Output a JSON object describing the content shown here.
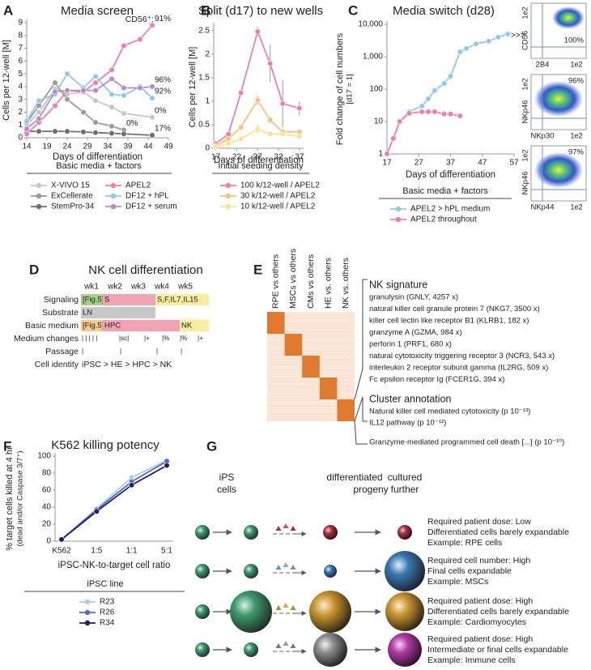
{
  "panel_labels": [
    "A",
    "B",
    "C",
    "D",
    "E",
    "F",
    "G"
  ],
  "chart_data": [
    {
      "type": "line",
      "title": "Media screen",
      "x_label": "Days of differentiation",
      "y_label": "Cells per 12-well [M]",
      "annotation": "CD56⁺:",
      "legend_title": "Basic media + factors",
      "xlim": [
        14,
        49
      ],
      "xticks": [
        14,
        19,
        24,
        29,
        34,
        39,
        44,
        49
      ],
      "ylim": [
        0,
        9
      ],
      "yticks": [
        0,
        1,
        2,
        3,
        4,
        5,
        6,
        7,
        8,
        9
      ],
      "series": [
        {
          "name": "X-VIVO 15",
          "color": "#c6c6c6",
          "end_label": "0%",
          "x": [
            14,
            17,
            21,
            24,
            28,
            31,
            35,
            38,
            45
          ],
          "values": [
            1.0,
            2.0,
            3.8,
            3.4,
            3.6,
            2.9,
            2.4,
            1.9,
            1.6
          ]
        },
        {
          "name": "ExCellerate",
          "color": "#9a9a9a",
          "end_label": "0%",
          "x": [
            14,
            17,
            21,
            24,
            28,
            31,
            35,
            38
          ],
          "values": [
            1.2,
            2.5,
            4.3,
            3.0,
            2.0,
            1.2,
            0.9,
            0.6
          ]
        },
        {
          "name": "StemPro-34",
          "color": "#6e6e6e",
          "end_label": "17%",
          "x": [
            14,
            17,
            21,
            24,
            28,
            31,
            35,
            38,
            45
          ],
          "values": [
            0.5,
            0.5,
            0.5,
            0.5,
            0.45,
            0.4,
            0.35,
            0.3,
            0.2
          ]
        },
        {
          "name": "APEL2",
          "color": "#ec7fae",
          "end_label": "91%",
          "x": [
            14,
            17,
            21,
            24,
            28,
            31,
            35,
            38,
            42,
            45
          ],
          "values": [
            0.3,
            1.2,
            2.5,
            3.7,
            3.6,
            4.3,
            5.3,
            7.2,
            7.7,
            8.8
          ]
        },
        {
          "name": "DF12 + hPL",
          "color": "#8fc8ee",
          "end_label": "92%",
          "x": [
            14,
            17,
            21,
            24,
            28,
            31,
            35,
            38,
            42,
            45
          ],
          "values": [
            1.3,
            2.9,
            3.4,
            5.0,
            3.9,
            4.8,
            3.4,
            3.3,
            4.0,
            3.1
          ]
        },
        {
          "name": "DF12 + serum",
          "color": "#b38ad0",
          "end_label": "96%",
          "x": [
            14,
            17,
            21,
            24,
            28,
            31,
            35,
            38,
            42,
            45
          ],
          "values": [
            0.7,
            1.5,
            3.6,
            3.7,
            3.7,
            3.7,
            4.6,
            3.9,
            3.9,
            4.0
          ]
        }
      ]
    },
    {
      "type": "line",
      "title": "Split (d17) to new wells",
      "x_label": "Days of differentiation",
      "y_label": "Cells per 12-well [M]",
      "legend_title": "Initial seeding density",
      "xlim": [
        16.5,
        38
      ],
      "xticks": [
        17,
        22,
        27,
        32,
        37
      ],
      "ylim": [
        0,
        2.6
      ],
      "yticks": [
        0,
        0.5,
        1,
        1.5,
        2,
        2.5
      ],
      "series": [
        {
          "name": "100 k/12-well / APEL2",
          "color": "#ec7fae",
          "x": [
            17,
            20,
            23,
            27,
            30,
            33,
            37
          ],
          "values": [
            0.1,
            0.3,
            1.18,
            2.48,
            1.8,
            0.95,
            0.85
          ],
          "errors": [
            0.02,
            0.03,
            0.05,
            0.1,
            0.4,
            0.5,
            0.15
          ]
        },
        {
          "name": "30 k/12-well / APEL2",
          "color": "#f6c27c",
          "x": [
            17,
            20,
            23,
            27,
            30,
            33,
            37
          ],
          "values": [
            0.05,
            0.2,
            0.45,
            1.02,
            0.6,
            0.35,
            0.35
          ],
          "errors": [
            0.01,
            0.02,
            0.03,
            0.1,
            0.08,
            0.05,
            0.05
          ]
        },
        {
          "name": "10 k/12-well / APEL2",
          "color": "#f7e48c",
          "x": [
            17,
            20,
            23,
            27,
            30,
            33,
            37
          ],
          "values": [
            0.02,
            0.1,
            0.2,
            0.4,
            0.3,
            0.3,
            0.25
          ],
          "errors": [
            0.01,
            0.01,
            0.02,
            0.08,
            0.05,
            0.05,
            0.04
          ]
        }
      ]
    },
    {
      "type": "line",
      "title": "Media switch (d28)",
      "x_label": "Days of differentiation",
      "y_label": "Fold change of cell numbers",
      "y_sublabel": "[d17 = 1]",
      "legend_title": "Basic media + factors",
      "log_y": true,
      "xlim": [
        17,
        57
      ],
      "xticks": [
        17,
        27,
        37,
        47,
        57
      ],
      "ylim": [
        1,
        10000
      ],
      "yticks": [
        1,
        10,
        100,
        {
          "value": 1000,
          "label": "1,000"
        },
        {
          "value": 10000,
          "label": "10,000"
        }
      ],
      "series": [
        {
          "name": "APEL2 > hPL medium",
          "color": "#8fc8ee",
          "x": [
            17,
            19,
            21,
            24,
            28,
            30,
            32,
            35,
            37,
            40,
            42,
            45,
            49,
            52,
            55
          ],
          "values": [
            1,
            3,
            10,
            20,
            30,
            50,
            90,
            150,
            250,
            1400,
            1800,
            2500,
            3000,
            4000,
            5000
          ]
        },
        {
          "name": "APEL2 throughout",
          "color": "#ec7fae",
          "x": [
            17,
            19,
            21,
            24,
            28,
            30,
            32,
            35,
            37,
            40
          ],
          "values": [
            1,
            3,
            10,
            18,
            20,
            20,
            20,
            17,
            17,
            15
          ]
        }
      ]
    },
    {
      "type": "line",
      "title": "K562 killing potency",
      "x_label": "iPSC-NK-to-target cell ratio",
      "y_label": "% target cells killed at 4 hr",
      "y_sublabel": "(dead and/or Caspase 3/7⁺)",
      "legend_title": "iPSC line",
      "categories": [
        "K562",
        "1:5",
        "1:1",
        "5:1"
      ],
      "ylim": [
        0,
        100
      ],
      "yticks": [
        0,
        20,
        40,
        60,
        80,
        100
      ],
      "series": [
        {
          "name": "R23",
          "color": "#a9cdef",
          "values": [
            2,
            38,
            75,
            95
          ]
        },
        {
          "name": "R26",
          "color": "#4a6fc0",
          "values": [
            2,
            37,
            70,
            94
          ]
        },
        {
          "name": "R34",
          "color": "#221c6e",
          "values": [
            2,
            35,
            66,
            89
          ]
        }
      ]
    }
  ],
  "flow_arrow": ">>>",
  "flow_plots": [
    {
      "y_label": "CD56",
      "x_label": "2B4",
      "percent": "100%",
      "y_tick": "1e2",
      "x_tick": "1e2"
    },
    {
      "y_label": "NKp46",
      "x_label": "NKp30",
      "percent": "96%",
      "y_tick": "1e2",
      "x_tick": "1e2"
    },
    {
      "y_label": "NKp46",
      "x_label": "NKp44",
      "percent": "97%",
      "y_tick": "1e2",
      "x_tick": "1e2"
    }
  ],
  "nk_differentiation": {
    "title": "NK cell differentiation",
    "weeks": [
      "wk1",
      "wk2",
      "wk3",
      "wk4",
      "wk5"
    ],
    "row_labels": [
      "Signaling",
      "Substrate",
      "Basic medium",
      "Medium changes",
      "Passage",
      "Cell identity"
    ],
    "signaling": [
      "[Fig.5]",
      "S",
      "S,F,IL7,IL15"
    ],
    "substrate": [
      "LN"
    ],
    "basic_medium": [
      "[Fig.5]",
      "HPC",
      "NK"
    ],
    "medium_changes": [
      "| | | | |",
      "|sc|",
      "|+",
      "|%",
      "|%",
      "|+"
    ],
    "passage": [
      "|",
      "|",
      "|",
      "|"
    ],
    "cell_identity": "iPSC > HE > HPC > NK"
  },
  "signature_heatmap": {
    "columns": [
      "RPE vs others",
      "MSCs vs others",
      "CMs vs others",
      "HE vs. others",
      "NK vs. others"
    ],
    "signature_title": "NK signature",
    "signature": [
      "granulysin (GNLY, 4257 x)",
      "natural killer cell granule protein 7 (NKG7, 3500 x)",
      "killer cell lectin like receptor B1 (KLRB1, 182 x)",
      "granzyme A (GZMA, 984 x)",
      "perforin 1 (PRF1, 680 x)",
      "natural cytotoxicity triggering receptor 3 (NCR3, 543 x)",
      "interleukin 2 receptor subunit gamma (IL2RG, 509 x)",
      "Fc epsilon receptor Ig (FCER1G, 394 x)"
    ],
    "annotation_title": "Cluster annotation",
    "annotations": [
      "Natural killer cell mediated cytotoxicity (p 10⁻¹³)",
      "IL12 pathway (p 10⁻¹²)",
      "Granzyme-mediated programmed cell death [...] (p 10⁻¹⁰)"
    ]
  },
  "cell_expansion": {
    "headers": [
      "iPS",
      "cells",
      "differentiated",
      "progeny",
      "cultured",
      "further"
    ],
    "rows": [
      [
        "Required patient dose: Low",
        "Differentiated cells barely expandable",
        "Example: RPE cells"
      ],
      [
        "Required cell number: High",
        "Final cells expandable",
        "Example: MSCs"
      ],
      [
        "Required patient dose: High",
        "Differentiated cells barely expandable",
        "Example: Cardiomyocytes"
      ],
      [
        "Required patient dose: High",
        "Intermediate or final cells expandable",
        "Example: Immune cells"
      ]
    ]
  }
}
